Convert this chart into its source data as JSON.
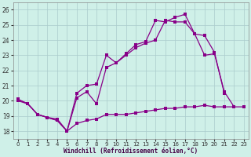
{
  "xlabel": "Windchill (Refroidissement éolien,°C)",
  "background_color": "#cff0e8",
  "line_color": "#880088",
  "xlim": [
    -0.5,
    23.5
  ],
  "ylim": [
    17.5,
    26.5
  ],
  "yticks": [
    18,
    19,
    20,
    21,
    22,
    23,
    24,
    25,
    26
  ],
  "xticks": [
    0,
    1,
    2,
    3,
    4,
    5,
    6,
    7,
    8,
    9,
    10,
    11,
    12,
    13,
    14,
    15,
    16,
    17,
    18,
    19,
    20,
    21,
    22,
    23
  ],
  "series1_x": [
    0,
    1,
    2,
    3,
    4,
    5,
    6,
    7,
    8,
    9,
    10,
    11,
    12,
    13,
    14,
    15,
    16,
    17,
    18,
    19,
    20,
    21,
    22,
    23
  ],
  "series1_y": [
    20.0,
    19.8,
    19.1,
    18.9,
    18.7,
    18.0,
    18.5,
    18.7,
    18.8,
    19.1,
    19.1,
    19.1,
    19.2,
    19.3,
    19.4,
    19.5,
    19.5,
    19.6,
    19.6,
    19.7,
    19.6,
    19.6,
    19.6,
    19.6
  ],
  "series2_x": [
    0,
    1,
    2,
    3,
    4,
    5,
    6,
    7,
    8,
    9,
    10,
    11,
    12,
    13,
    14,
    15,
    16,
    17,
    18,
    19,
    20,
    21,
    22
  ],
  "series2_y": [
    20.1,
    19.8,
    19.1,
    18.9,
    18.7,
    18.0,
    20.2,
    20.6,
    19.8,
    22.2,
    22.5,
    23.0,
    23.5,
    23.8,
    24.0,
    25.3,
    25.2,
    25.2,
    24.4,
    23.0,
    23.1,
    20.6,
    19.6
  ],
  "series3_x": [
    0,
    1,
    2,
    3,
    4,
    5,
    6,
    7,
    8,
    9,
    10,
    11,
    12,
    13,
    14,
    15,
    16,
    17,
    18,
    19,
    20,
    21
  ],
  "series3_y": [
    20.1,
    19.8,
    19.1,
    18.9,
    18.8,
    18.0,
    20.5,
    21.0,
    21.1,
    23.0,
    22.5,
    23.1,
    23.7,
    23.9,
    25.3,
    25.2,
    25.5,
    25.7,
    24.4,
    24.3,
    23.2,
    20.5
  ]
}
